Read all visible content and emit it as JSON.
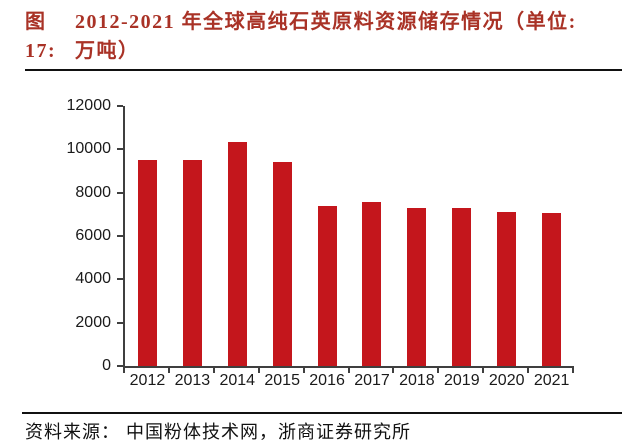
{
  "title": {
    "prefix": "图17:",
    "line1": "2012-2021 年全球高纯石英原料资源储存情况（单位:",
    "line2": "万吨）"
  },
  "source": {
    "label": "资料来源：",
    "text": "中国粉体技术网，浙商证券研究所"
  },
  "colors": {
    "bar": "#c4161c",
    "title_red": "#a93226",
    "axis_line": "#3f3f3f",
    "label_text": "#1a1a1a",
    "rule_black": "#111111"
  },
  "chart_data": {
    "type": "bar",
    "title": "2012-2021 年全球高纯石英原料资源储存情况",
    "unit": "万吨",
    "categories": [
      "2012",
      "2013",
      "2014",
      "2015",
      "2016",
      "2017",
      "2018",
      "2019",
      "2020",
      "2021"
    ],
    "values": [
      9500,
      9500,
      10350,
      9400,
      7400,
      7550,
      7300,
      7300,
      7100,
      7050
    ],
    "xlabel": "",
    "ylabel": "",
    "ylim": [
      0,
      12000
    ],
    "yticks": [
      0,
      2000,
      4000,
      6000,
      8000,
      10000,
      12000
    ],
    "grid": false,
    "legend_position": "none"
  }
}
